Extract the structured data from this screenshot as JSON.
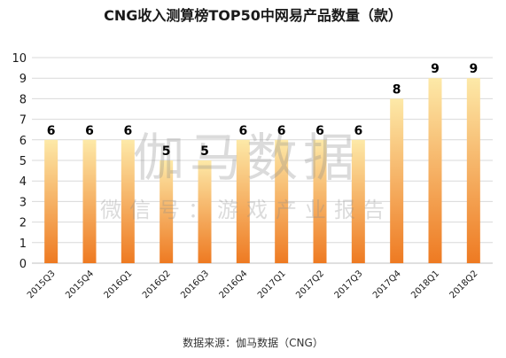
{
  "chart_data": {
    "type": "bar",
    "title": "CNG收入测算榜TOP50中网易产品数量（款）",
    "categories": [
      "2015Q3",
      "2015Q4",
      "2016Q1",
      "2016Q2",
      "2016Q3",
      "2016Q4",
      "2017Q1",
      "2017Q2",
      "2017Q3",
      "2017Q4",
      "2018Q1",
      "2018Q2"
    ],
    "values": [
      6,
      6,
      6,
      5,
      5,
      6,
      6,
      6,
      6,
      8,
      9,
      9
    ],
    "ylim": [
      0,
      10
    ],
    "yticks": [
      0,
      1,
      2,
      3,
      4,
      5,
      6,
      7,
      8,
      9,
      10
    ],
    "xlabel": "",
    "ylabel": "",
    "grid": true,
    "legend": "none",
    "colors": {
      "bar_top": "#fde9a8",
      "bar_bottom": "#ee7a22",
      "grid": "#d9d9d9"
    }
  },
  "watermark": {
    "main": "伽马数据",
    "sub": "微信号：游戏产业报告"
  },
  "source": "数据来源：伽马数据（CNG）"
}
